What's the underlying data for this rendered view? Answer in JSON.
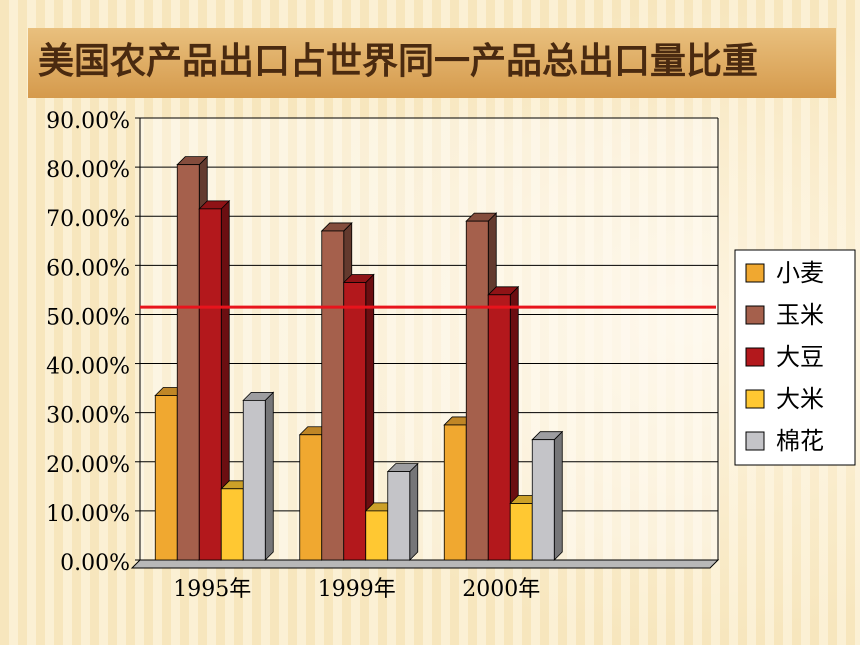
{
  "chart_data": {
    "type": "bar3d",
    "title": "美国农产品出口占世界同一产品总出口量比重",
    "categories": [
      "1995年",
      "1999年",
      "2000年",
      null
    ],
    "series": [
      {
        "name": "小麦",
        "color": "#f0a830",
        "values": [
          33.5,
          25.5,
          27.5,
          null
        ]
      },
      {
        "name": "玉米",
        "color": "#a5604c",
        "values": [
          80.5,
          67,
          69,
          null
        ]
      },
      {
        "name": "大豆",
        "color": "#b3181c",
        "values": [
          71.5,
          56.5,
          54,
          null
        ]
      },
      {
        "name": "大米",
        "color": "#ffc832",
        "values": [
          14.5,
          10,
          11.5,
          null
        ]
      },
      {
        "name": "棉花",
        "color": "#c4c4c8",
        "values": [
          32.5,
          18,
          24.5,
          null
        ]
      }
    ],
    "ylim": [
      0,
      90
    ],
    "yticks": [
      {
        "value": 0,
        "label": "0.00%"
      },
      {
        "value": 10,
        "label": "10.00%"
      },
      {
        "value": 20,
        "label": "20.00%"
      },
      {
        "value": 30,
        "label": "30.00%"
      },
      {
        "value": 40,
        "label": "40.00%"
      },
      {
        "value": 50,
        "label": "50.00%"
      },
      {
        "value": 60,
        "label": "60.00%"
      },
      {
        "value": 70,
        "label": "70.00%"
      },
      {
        "value": 80,
        "label": "80.00%"
      },
      {
        "value": 90,
        "label": "90.00%"
      }
    ],
    "grid": true,
    "legend": "right",
    "reference_line": {
      "value": 51.5,
      "color": "#e8141c"
    }
  }
}
